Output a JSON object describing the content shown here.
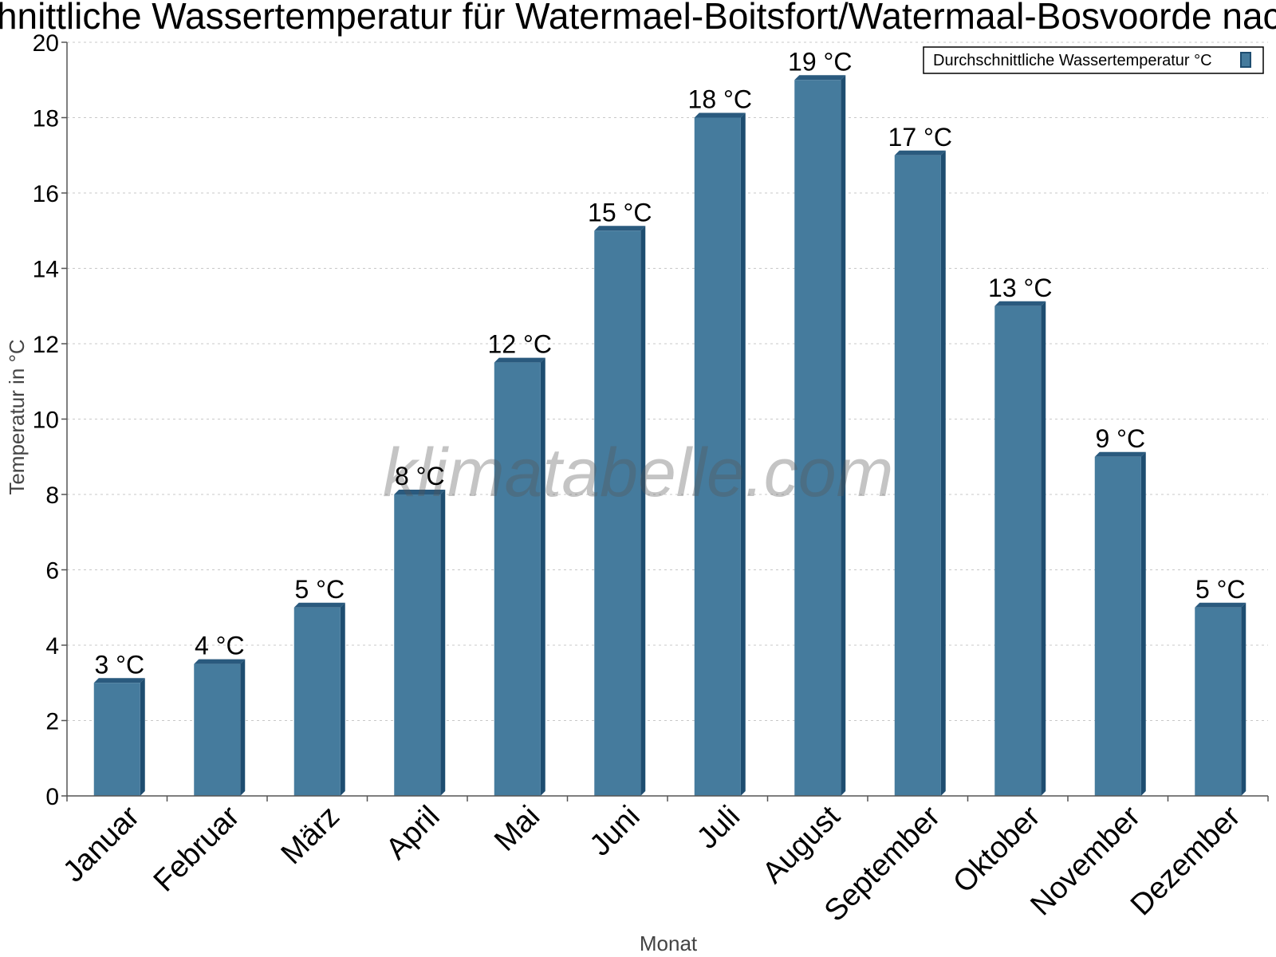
{
  "colors": {
    "bar_face": "#457b9d",
    "bar_side": "#1e4d70",
    "bar_top": "#2a5a7e",
    "grid": "#c8c8c8",
    "axis": "#555555"
  },
  "watermark": "klimatabelle.com",
  "chart_data": {
    "type": "bar",
    "title": "Durchschnittliche Wassertemperatur für Watermael-Boitsfort/Watermaal-Bosvoorde nach Monat",
    "xlabel": "Monat",
    "ylabel": "Temperatur in °C",
    "ylim": [
      0,
      20
    ],
    "yticks": [
      "0",
      "2",
      "4",
      "6",
      "8",
      "10",
      "12",
      "14",
      "16",
      "18",
      "20"
    ],
    "grid": true,
    "legend_position": "top-right",
    "categories": [
      "Januar",
      "Februar",
      "März",
      "April",
      "Mai",
      "Juni",
      "Juli",
      "August",
      "September",
      "Oktober",
      "November",
      "Dezember"
    ],
    "series": [
      {
        "name": "Durchschnittliche Wassertemperatur °C",
        "values": [
          3,
          3.5,
          5,
          8,
          11.5,
          15,
          18,
          19,
          17,
          13,
          9,
          5
        ],
        "data_labels": [
          "3 °C",
          "4 °C",
          "5 °C",
          "8 °C",
          "12 °C",
          "15 °C",
          "18 °C",
          "19 °C",
          "17 °C",
          "13 °C",
          "9 °C",
          "5 °C"
        ]
      }
    ]
  }
}
